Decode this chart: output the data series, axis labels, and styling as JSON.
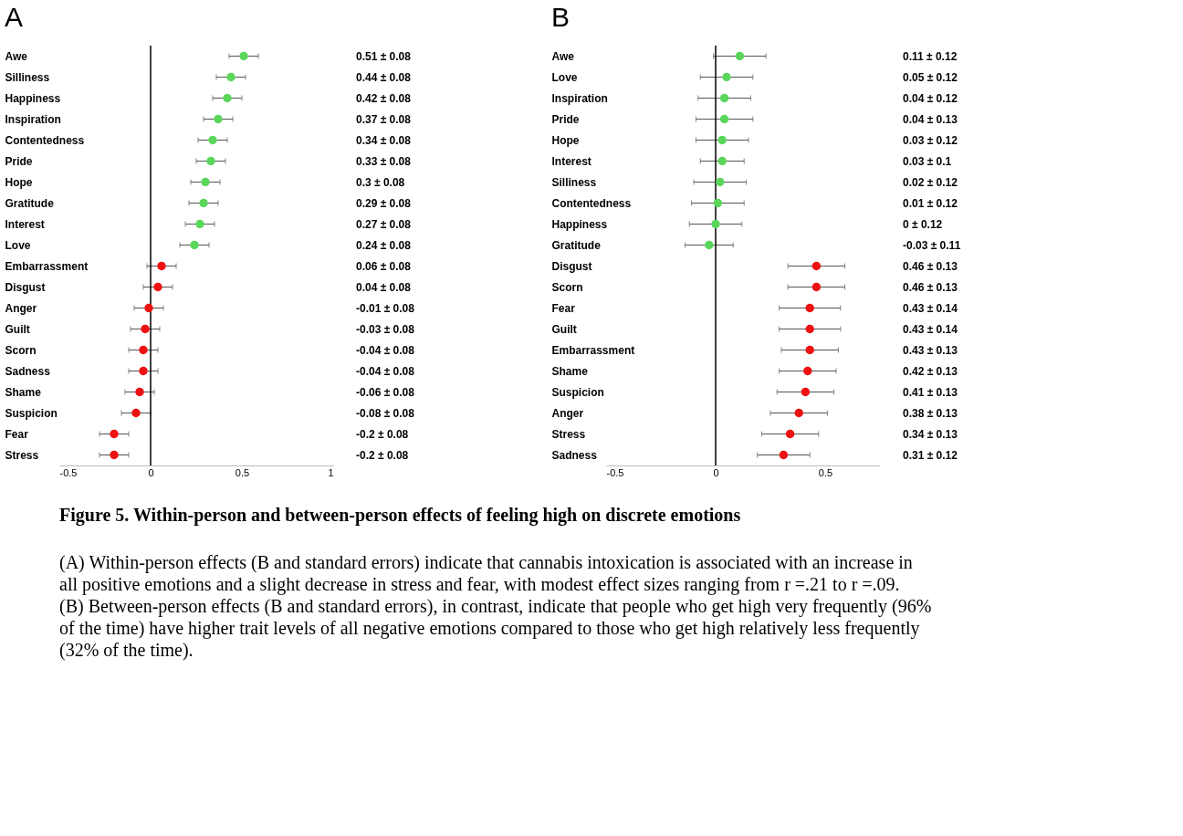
{
  "chart_data": [
    {
      "type": "scatter",
      "title": "A",
      "orientation": "horizontal",
      "grid": false,
      "legend": false,
      "marker": "circle",
      "categories": [
        "Awe",
        "Silliness",
        "Happiness",
        "Inspiration",
        "Contentedness",
        "Pride",
        "Hope",
        "Gratitude",
        "Interest",
        "Love",
        "Embarrassment",
        "Disgust",
        "Anger",
        "Guilt",
        "Scorn",
        "Sadness",
        "Shame",
        "Suspicion",
        "Fear",
        "Stress"
      ],
      "series": [
        {
          "color": "#5ad65a",
          "values": [
            0.51,
            0.44,
            0.42,
            0.37,
            0.34,
            0.33,
            0.3,
            0.29,
            0.27,
            0.24,
            null,
            null,
            null,
            null,
            null,
            null,
            null,
            null,
            null,
            null
          ],
          "errors": [
            0.08,
            0.08,
            0.08,
            0.08,
            0.08,
            0.08,
            0.08,
            0.08,
            0.08,
            0.08,
            null,
            null,
            null,
            null,
            null,
            null,
            null,
            null,
            null,
            null
          ]
        },
        {
          "color": "#ee1111",
          "values": [
            null,
            null,
            null,
            null,
            null,
            null,
            null,
            null,
            null,
            null,
            0.06,
            0.04,
            -0.01,
            -0.03,
            -0.04,
            -0.04,
            -0.06,
            -0.08,
            -0.2,
            -0.2
          ],
          "errors": [
            null,
            null,
            null,
            null,
            null,
            null,
            null,
            null,
            null,
            null,
            0.08,
            0.08,
            0.08,
            0.08,
            0.08,
            0.08,
            0.08,
            0.08,
            0.08,
            0.08
          ]
        }
      ],
      "value_labels": [
        "0.51 ± 0.08",
        "0.44 ± 0.08",
        "0.42 ± 0.08",
        "0.37 ± 0.08",
        "0.34 ± 0.08",
        "0.33 ± 0.08",
        "0.3 ± 0.08",
        "0.29 ± 0.08",
        "0.27 ± 0.08",
        "0.24 ± 0.08",
        "0.06 ± 0.08",
        "0.04 ± 0.08",
        "-0.01 ± 0.08",
        "-0.03 ± 0.08",
        "-0.04 ± 0.08",
        "-0.04 ± 0.08",
        "-0.06 ± 0.08",
        "-0.08 ± 0.08",
        "-0.2 ± 0.08",
        "-0.2 ± 0.08"
      ],
      "xlim": [
        -0.5,
        1
      ],
      "xticks": [
        -0.5,
        0,
        0.5,
        1
      ],
      "ref_lines": [
        {
          "axis": "x",
          "value": 0,
          "color": "#000000"
        }
      ],
      "annotations": [
        "Figure 5. Within-person and between-person effects of feeling high on discrete emotions",
        "(A) Within-person effects (B and standard errors) indicate that cannabis intoxication is associated with an increase in all positive emotions and a slight decrease in stress and fear, with modest effect sizes ranging from r =.21 to r =.09. (B) Between-person effects (B and standard errors), in contrast, indicate that people who get high very frequently (96% of the time) have higher trait levels of all negative emotions compared to those who get high relatively less frequently (32% of the time)."
      ]
    },
    {
      "type": "scatter",
      "title": "B",
      "orientation": "horizontal",
      "grid": false,
      "legend": false,
      "marker": "circle",
      "categories": [
        "Awe",
        "Love",
        "Inspiration",
        "Pride",
        "Hope",
        "Interest",
        "Silliness",
        "Contentedness",
        "Happiness",
        "Gratitude",
        "Disgust",
        "Scorn",
        "Fear",
        "Guilt",
        "Embarrassment",
        "Shame",
        "Suspicion",
        "Anger",
        "Stress",
        "Sadness"
      ],
      "series": [
        {
          "color": "#5ad65a",
          "values": [
            0.11,
            0.05,
            0.04,
            0.04,
            0.03,
            0.03,
            0.02,
            0.01,
            0,
            -0.03,
            null,
            null,
            null,
            null,
            null,
            null,
            null,
            null,
            null,
            null
          ],
          "errors": [
            0.12,
            0.12,
            0.12,
            0.13,
            0.12,
            0.1,
            0.12,
            0.12,
            0.12,
            0.11,
            null,
            null,
            null,
            null,
            null,
            null,
            null,
            null,
            null,
            null
          ]
        },
        {
          "color": "#ee1111",
          "values": [
            null,
            null,
            null,
            null,
            null,
            null,
            null,
            null,
            null,
            null,
            0.46,
            0.46,
            0.43,
            0.43,
            0.43,
            0.42,
            0.41,
            0.38,
            0.34,
            0.31
          ],
          "errors": [
            null,
            null,
            null,
            null,
            null,
            null,
            null,
            null,
            null,
            null,
            0.13,
            0.13,
            0.14,
            0.14,
            0.13,
            0.13,
            0.13,
            0.13,
            0.13,
            0.12
          ]
        }
      ],
      "value_labels": [
        "0.11 ± 0.12",
        "0.05 ± 0.12",
        "0.04 ± 0.12",
        "0.04 ± 0.13",
        "0.03 ± 0.12",
        "0.03 ± 0.1",
        "0.02 ± 0.12",
        "0.01 ± 0.12",
        "0 ± 0.12",
        "-0.03 ± 0.11",
        "0.46 ± 0.13",
        "0.46 ± 0.13",
        "0.43 ± 0.14",
        "0.43 ± 0.14",
        "0.43 ± 0.13",
        "0.42 ± 0.13",
        "0.41 ± 0.13",
        "0.38 ± 0.13",
        "0.34 ± 0.13",
        "0.31 ± 0.12"
      ],
      "xlim": [
        -0.5,
        0.75
      ],
      "xticks": [
        -0.5,
        0,
        0.5
      ],
      "ref_lines": [
        {
          "axis": "x",
          "value": 0,
          "color": "#000000"
        }
      ]
    }
  ]
}
